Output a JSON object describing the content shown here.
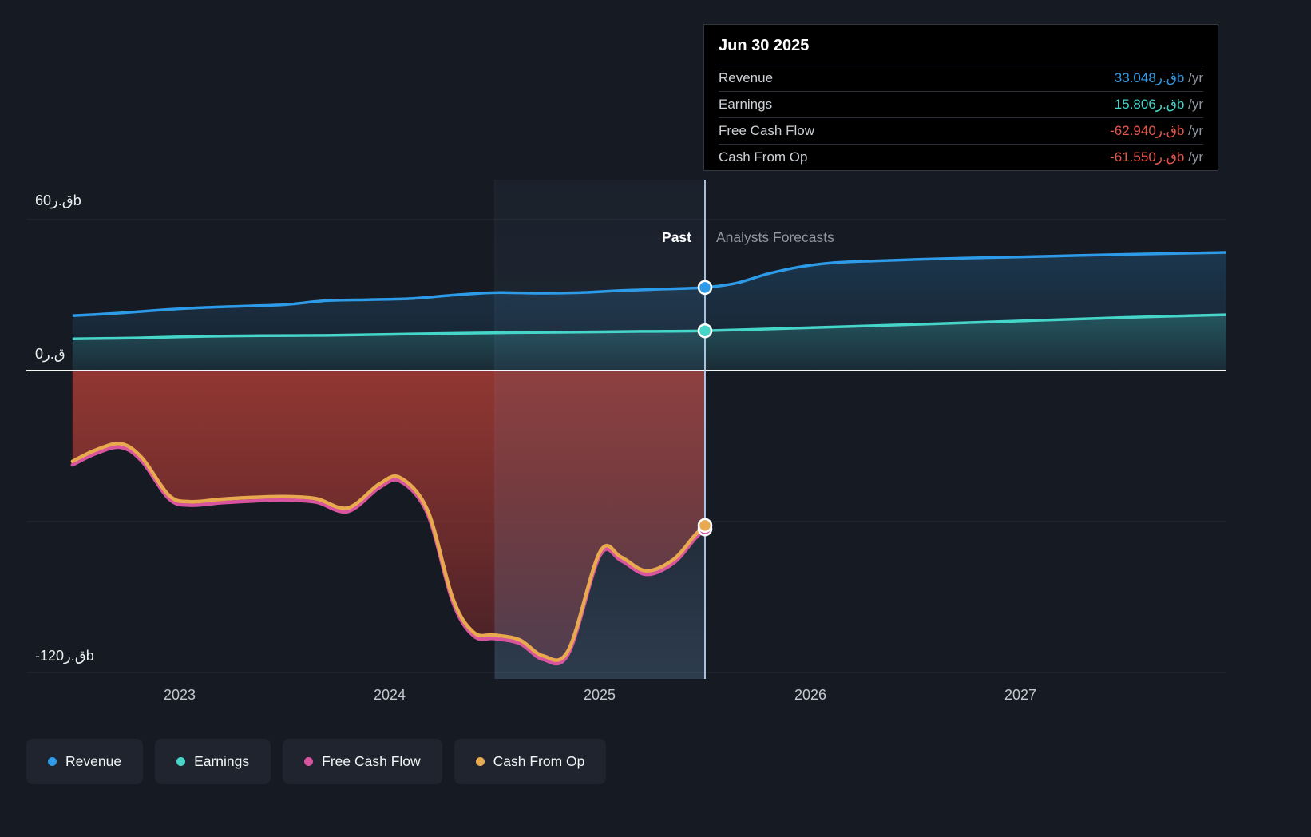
{
  "tooltip": {
    "date": "Jun 30 2025",
    "rows": [
      {
        "label": "Revenue",
        "value": "33.048ق.رb",
        "suffix": " /yr",
        "color": "#2E9BE8"
      },
      {
        "label": "Earnings",
        "value": "15.806ق.رb",
        "suffix": " /yr",
        "color": "#45D5C9"
      },
      {
        "label": "Free Cash Flow",
        "value": "-62.940ق.رb",
        "suffix": " /yr",
        "color": "#E8544A"
      },
      {
        "label": "Cash From Op",
        "value": "-61.550ق.رb",
        "suffix": " /yr",
        "color": "#E8544A"
      }
    ]
  },
  "labels": {
    "past": "Past",
    "forecast": "Analysts Forecasts"
  },
  "legend": [
    {
      "label": "Revenue",
      "color": "#2E9BE8"
    },
    {
      "label": "Earnings",
      "color": "#45D5C9"
    },
    {
      "label": "Free Cash Flow",
      "color": "#D9549E"
    },
    {
      "label": "Cash From Op",
      "color": "#E8A94F"
    }
  ],
  "chart_data": {
    "type": "line",
    "title": "Past and forecast financials (QAR billions)",
    "x_domain": [
      2022.49,
      2027.98
    ],
    "y_domain": [
      -120,
      60
    ],
    "grid_values": [
      60,
      -60,
      -120
    ],
    "zero_line": 0,
    "divider_x": 2025.5,
    "divider_date": "Jun 30 2025",
    "highlight_band": [
      2024.5,
      2025.5
    ],
    "x_ticks": [
      {
        "value": 2023,
        "label": "2023"
      },
      {
        "value": 2024,
        "label": "2024"
      },
      {
        "value": 2025,
        "label": "2025"
      },
      {
        "value": 2026,
        "label": "2026"
      },
      {
        "value": 2027,
        "label": "2027"
      }
    ],
    "y_ticks": [
      {
        "value": 60,
        "label": "60ق.رb"
      },
      {
        "value": 0,
        "label": "0ق.ر"
      },
      {
        "value": -120,
        "label": "-120ق.رb"
      }
    ],
    "series": [
      {
        "id": "revenue",
        "name": "Revenue",
        "color": "#2E9BE8",
        "width": 3.5,
        "area": "blue",
        "points": [
          [
            2022.49,
            21.8
          ],
          [
            2022.7,
            22.8
          ],
          [
            2022.9,
            24.0
          ],
          [
            2023.1,
            25.0
          ],
          [
            2023.3,
            25.6
          ],
          [
            2023.5,
            26.2
          ],
          [
            2023.7,
            27.8
          ],
          [
            2023.9,
            28.2
          ],
          [
            2024.1,
            28.6
          ],
          [
            2024.3,
            30.0
          ],
          [
            2024.5,
            31.0
          ],
          [
            2024.7,
            30.8
          ],
          [
            2024.9,
            31.0
          ],
          [
            2025.1,
            31.8
          ],
          [
            2025.3,
            32.4
          ],
          [
            2025.5,
            33.048
          ]
        ],
        "forecast_points": [
          [
            2025.65,
            34.8
          ],
          [
            2025.8,
            38.5
          ],
          [
            2025.95,
            41.2
          ],
          [
            2026.1,
            42.8
          ],
          [
            2026.3,
            43.6
          ],
          [
            2026.6,
            44.4
          ],
          [
            2026.9,
            45.0
          ],
          [
            2027.2,
            45.6
          ],
          [
            2027.5,
            46.2
          ],
          [
            2027.98,
            47.0
          ]
        ]
      },
      {
        "id": "earnings",
        "name": "Earnings",
        "color": "#45D5C9",
        "width": 3.5,
        "area": "teal",
        "points": [
          [
            2022.49,
            12.6
          ],
          [
            2022.8,
            13.0
          ],
          [
            2023.1,
            13.6
          ],
          [
            2023.4,
            13.9
          ],
          [
            2023.7,
            14.0
          ],
          [
            2024.0,
            14.4
          ],
          [
            2024.3,
            14.8
          ],
          [
            2024.6,
            15.1
          ],
          [
            2024.9,
            15.3
          ],
          [
            2025.2,
            15.6
          ],
          [
            2025.5,
            15.806
          ]
        ],
        "forecast_points": [
          [
            2025.9,
            16.8
          ],
          [
            2026.3,
            17.8
          ],
          [
            2026.7,
            18.9
          ],
          [
            2027.1,
            20.0
          ],
          [
            2027.5,
            21.1
          ],
          [
            2027.98,
            22.2
          ]
        ]
      },
      {
        "id": "free_cash_flow",
        "name": "Free Cash Flow",
        "color": "#D9549E",
        "width": 4.5,
        "points": [
          [
            2022.49,
            -37.5
          ],
          [
            2022.6,
            -33.0
          ],
          [
            2022.72,
            -30.5
          ],
          [
            2022.82,
            -36.0
          ],
          [
            2022.95,
            -51.0
          ],
          [
            2023.05,
            -53.5
          ],
          [
            2023.2,
            -52.5
          ],
          [
            2023.35,
            -51.8
          ],
          [
            2023.5,
            -51.5
          ],
          [
            2023.65,
            -52.3
          ],
          [
            2023.8,
            -56.0
          ],
          [
            2023.95,
            -46.5
          ],
          [
            2024.05,
            -44.0
          ],
          [
            2024.18,
            -57.0
          ],
          [
            2024.3,
            -92.0
          ],
          [
            2024.4,
            -105.5
          ],
          [
            2024.5,
            -106.5
          ],
          [
            2024.62,
            -108.5
          ],
          [
            2024.73,
            -114.8
          ],
          [
            2024.85,
            -112.5
          ],
          [
            2025.0,
            -73.5
          ],
          [
            2025.1,
            -75.5
          ],
          [
            2025.22,
            -81.0
          ],
          [
            2025.35,
            -76.5
          ],
          [
            2025.45,
            -67.0
          ],
          [
            2025.5,
            -62.94
          ]
        ]
      },
      {
        "id": "cash_from_op",
        "name": "Cash From Op",
        "color": "#E8A94F",
        "width": 4.5,
        "area": "red",
        "points": [
          [
            2022.49,
            -36.11
          ],
          [
            2022.6,
            -31.61
          ],
          [
            2022.72,
            -29.11
          ],
          [
            2022.82,
            -34.61
          ],
          [
            2022.95,
            -49.61
          ],
          [
            2023.05,
            -52.11
          ],
          [
            2023.2,
            -51.11
          ],
          [
            2023.35,
            -50.41
          ],
          [
            2023.5,
            -50.11
          ],
          [
            2023.65,
            -50.91
          ],
          [
            2023.8,
            -54.61
          ],
          [
            2023.95,
            -45.11
          ],
          [
            2024.05,
            -42.61
          ],
          [
            2024.18,
            -55.61
          ],
          [
            2024.3,
            -90.61
          ],
          [
            2024.4,
            -104.11
          ],
          [
            2024.5,
            -105.11
          ],
          [
            2024.62,
            -107.11
          ],
          [
            2024.73,
            -113.41
          ],
          [
            2024.85,
            -111.11
          ],
          [
            2025.0,
            -72.11
          ],
          [
            2025.1,
            -74.11
          ],
          [
            2025.22,
            -79.61
          ],
          [
            2025.35,
            -75.11
          ],
          [
            2025.45,
            -65.61
          ],
          [
            2025.5,
            -61.55
          ]
        ]
      }
    ],
    "markers": [
      {
        "x": 2025.5,
        "value": -62.94,
        "color": "#D9549E",
        "series": "free_cash_flow"
      },
      {
        "x": 2025.5,
        "value": -61.55,
        "color": "#E8A94F",
        "series": "cash_from_op"
      },
      {
        "x": 2025.5,
        "value": 33.048,
        "color": "#2E9BE8",
        "series": "revenue"
      },
      {
        "x": 2025.5,
        "value": 15.806,
        "color": "#45D5C9",
        "series": "earnings"
      }
    ]
  }
}
